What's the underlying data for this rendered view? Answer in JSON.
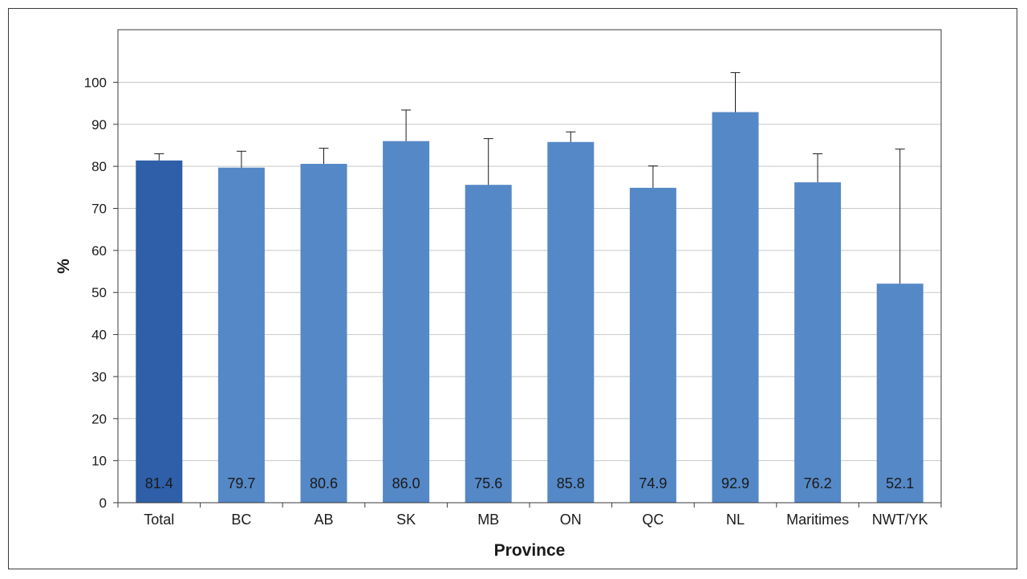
{
  "chart_data": {
    "type": "bar",
    "title": "",
    "xlabel": "Province",
    "ylabel": "%",
    "ylim": [
      0,
      100
    ],
    "yticks": [
      0,
      10,
      20,
      30,
      40,
      50,
      60,
      70,
      80,
      90,
      100
    ],
    "grid": true,
    "legend": "none",
    "categories": [
      "Total",
      "BC",
      "AB",
      "SK",
      "MB",
      "ON",
      "QC",
      "NL",
      "Maritimes",
      "NWT/YK"
    ],
    "values": [
      81.4,
      79.7,
      80.6,
      86.0,
      75.6,
      85.8,
      74.9,
      92.9,
      76.2,
      52.1
    ],
    "value_labels": [
      "81.4",
      "79.7",
      "80.6",
      "86.0",
      "75.6",
      "85.8",
      "74.9",
      "92.9",
      "76.2",
      "52.1"
    ],
    "error_upper": [
      83.0,
      83.6,
      84.3,
      93.4,
      86.6,
      88.2,
      80.1,
      102.3,
      83.0,
      84.1
    ],
    "colors": {
      "highlight_bar": "#2e5fa8",
      "bar": "#5588c6",
      "grid": "#c8c8c8",
      "axis": "#3a3a3a"
    }
  }
}
